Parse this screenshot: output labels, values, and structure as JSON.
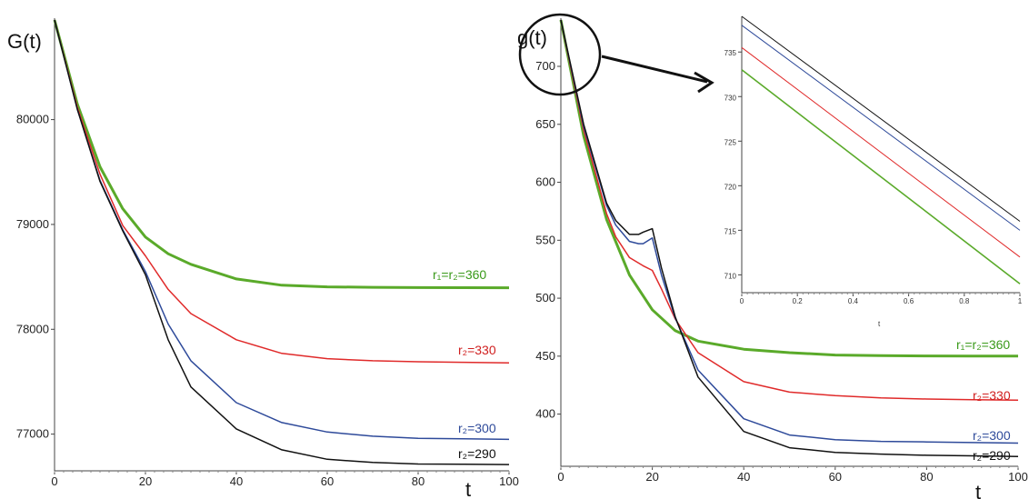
{
  "chart_data": [
    {
      "type": "line",
      "ylabel": "G(t)",
      "xlabel": "t",
      "xlim": [
        0,
        100
      ],
      "ylim": [
        76650,
        80950
      ],
      "xticks": [
        "0",
        "20",
        "40",
        "60",
        "80",
        "100"
      ],
      "yticks": [
        "77000",
        "78000",
        "79000",
        "80000"
      ],
      "series": [
        {
          "name": "r₁=r₂=360",
          "color": "#5aaa2a",
          "x": [
            0,
            5,
            10,
            15,
            20,
            25,
            30,
            40,
            50,
            60,
            70,
            80,
            90,
            100
          ],
          "y": [
            80950,
            80150,
            79550,
            79150,
            78880,
            78720,
            78620,
            78480,
            78420,
            78405,
            78400,
            78398,
            78397,
            78396
          ]
        },
        {
          "name": "r₂=330",
          "color": "#e02a2a",
          "x": [
            0,
            5,
            10,
            15,
            20,
            25,
            30,
            40,
            50,
            60,
            70,
            80,
            90,
            100
          ],
          "y": [
            80950,
            80120,
            79480,
            78990,
            78700,
            78380,
            78150,
            77900,
            77770,
            77720,
            77700,
            77690,
            77685,
            77680
          ]
        },
        {
          "name": "r₂=300",
          "color": "#2e4a9a",
          "x": [
            0,
            5,
            10,
            15,
            20,
            25,
            30,
            40,
            50,
            60,
            70,
            80,
            90,
            100
          ],
          "y": [
            80950,
            80100,
            79420,
            78950,
            78550,
            78050,
            77700,
            77300,
            77110,
            77020,
            76980,
            76960,
            76955,
            76950
          ]
        },
        {
          "name": "r₂=290",
          "color": "#111111",
          "x": [
            0,
            5,
            10,
            15,
            20,
            25,
            30,
            40,
            50,
            60,
            70,
            80,
            90,
            100
          ],
          "y": [
            80950,
            80100,
            79410,
            78940,
            78520,
            77900,
            77450,
            77050,
            76850,
            76760,
            76730,
            76715,
            76712,
            76710
          ]
        }
      ]
    },
    {
      "type": "line",
      "ylabel": "g(t)",
      "xlabel": "t",
      "xlim": [
        0,
        100
      ],
      "ylim": [
        355,
        740
      ],
      "xticks": [
        "0",
        "20",
        "40",
        "60",
        "80",
        "100"
      ],
      "yticks": [
        "400",
        "450",
        "500",
        "550",
        "600",
        "650",
        "700"
      ],
      "series": [
        {
          "name": "r₁=r₂=360",
          "color": "#5aaa2a",
          "x": [
            0,
            5,
            10,
            15,
            20,
            25,
            30,
            40,
            50,
            60,
            70,
            80,
            90,
            100
          ],
          "y": [
            740,
            640,
            568,
            520,
            490,
            472,
            463,
            456,
            453,
            451,
            450.5,
            450.2,
            450.1,
            450
          ]
        },
        {
          "name": "r₂=330",
          "color": "#e02a2a",
          "x": [
            0,
            5,
            10,
            12,
            15,
            18,
            20,
            22,
            25,
            30,
            40,
            50,
            60,
            70,
            80,
            90,
            100
          ],
          "y": [
            740,
            645,
            573,
            553,
            535,
            528,
            524,
            508,
            482,
            453,
            428,
            419,
            416,
            414,
            413,
            412.5,
            412
          ]
        },
        {
          "name": "r₂=300",
          "color": "#2e4a9a",
          "x": [
            0,
            5,
            10,
            12,
            15,
            17,
            18,
            20,
            22,
            25,
            30,
            40,
            50,
            60,
            70,
            80,
            90,
            100
          ],
          "y": [
            740,
            648,
            580,
            563,
            549,
            547,
            547,
            552,
            520,
            483,
            438,
            396,
            382,
            378,
            376.5,
            376,
            375.5,
            375
          ]
        },
        {
          "name": "r₂=290",
          "color": "#111111",
          "x": [
            0,
            5,
            10,
            12,
            15,
            17,
            18,
            20,
            22,
            25,
            30,
            40,
            50,
            60,
            70,
            80,
            90,
            100
          ],
          "y": [
            740,
            650,
            582,
            567,
            555,
            555,
            557,
            560,
            526,
            484,
            432,
            385,
            371,
            367,
            365.5,
            364.5,
            364,
            363.5
          ]
        }
      ]
    },
    {
      "type": "line",
      "xlabel": "t",
      "xlim": [
        0,
        1
      ],
      "ylim": [
        708,
        739
      ],
      "xticks": [
        "0",
        "0.2",
        "0.4",
        "0.6",
        "0.8",
        "1"
      ],
      "yticks": [
        "710",
        "715",
        "720",
        "725",
        "730",
        "735"
      ],
      "series": [
        {
          "color": "#111111",
          "x": [
            0,
            1
          ],
          "y": [
            739,
            716
          ]
        },
        {
          "color": "#2e4a9a",
          "x": [
            0,
            1
          ],
          "y": [
            738,
            715
          ]
        },
        {
          "color": "#e02a2a",
          "x": [
            0,
            1
          ],
          "y": [
            735.5,
            712
          ]
        },
        {
          "color": "#5aaa2a",
          "x": [
            0,
            1
          ],
          "y": [
            733,
            709
          ]
        }
      ]
    }
  ]
}
